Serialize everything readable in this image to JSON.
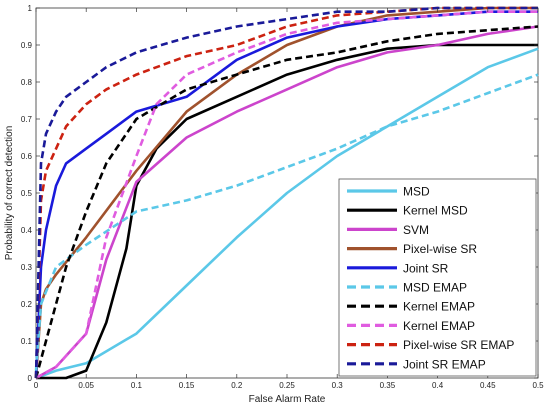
{
  "chart_data": {
    "type": "line",
    "title": "",
    "xlabel": "False Alarm Rate",
    "ylabel": "Probability of correct detection",
    "xlim": [
      0,
      0.5
    ],
    "ylim": [
      0,
      1
    ],
    "x_ticks": [
      "0",
      "0.05",
      "0.1",
      "0.15",
      "0.2",
      "0.25",
      "0.3",
      "0.35",
      "0.4",
      "0.45",
      "0.5"
    ],
    "y_ticks": [
      "0",
      "0.1",
      "0.2",
      "0.3",
      "0.4",
      "0.5",
      "0.6",
      "0.7",
      "0.8",
      "0.9",
      "1"
    ],
    "grid": false,
    "legend_position": "bottom-right",
    "series": [
      {
        "name": "MSD",
        "color": "#5bc8e8",
        "dash": "solid",
        "x": [
          0,
          0.02,
          0.05,
          0.1,
          0.15,
          0.2,
          0.25,
          0.3,
          0.35,
          0.4,
          0.45,
          0.5
        ],
        "y": [
          0,
          0.02,
          0.04,
          0.12,
          0.25,
          0.38,
          0.5,
          0.6,
          0.68,
          0.76,
          0.84,
          0.89
        ]
      },
      {
        "name": "Kernel MSD",
        "color": "#000000",
        "dash": "solid",
        "x": [
          0,
          0.03,
          0.05,
          0.07,
          0.09,
          0.1,
          0.12,
          0.15,
          0.2,
          0.25,
          0.3,
          0.35,
          0.4,
          0.45,
          0.5
        ],
        "y": [
          0,
          0,
          0.02,
          0.15,
          0.35,
          0.52,
          0.62,
          0.7,
          0.76,
          0.82,
          0.86,
          0.89,
          0.9,
          0.9,
          0.9
        ]
      },
      {
        "name": "SVM",
        "color": "#cc44cc",
        "dash": "solid",
        "x": [
          0,
          0.02,
          0.05,
          0.07,
          0.1,
          0.15,
          0.2,
          0.25,
          0.3,
          0.35,
          0.4,
          0.45,
          0.5
        ],
        "y": [
          0,
          0.03,
          0.12,
          0.32,
          0.53,
          0.65,
          0.72,
          0.78,
          0.84,
          0.88,
          0.9,
          0.93,
          0.95
        ]
      },
      {
        "name": "Pixel-wise SR",
        "color": "#a0522d",
        "dash": "solid",
        "x": [
          0,
          0.005,
          0.01,
          0.02,
          0.05,
          0.1,
          0.15,
          0.2,
          0.25,
          0.3,
          0.35,
          0.4,
          0.45,
          0.5
        ],
        "y": [
          0,
          0.2,
          0.24,
          0.28,
          0.38,
          0.56,
          0.72,
          0.82,
          0.9,
          0.95,
          0.98,
          0.99,
          1,
          1
        ]
      },
      {
        "name": "Joint SR",
        "color": "#1a1adb",
        "dash": "solid",
        "x": [
          0,
          0.005,
          0.01,
          0.02,
          0.03,
          0.05,
          0.07,
          0.1,
          0.15,
          0.2,
          0.25,
          0.3,
          0.35,
          0.4,
          0.45,
          0.5
        ],
        "y": [
          0,
          0.3,
          0.4,
          0.52,
          0.58,
          0.62,
          0.66,
          0.72,
          0.76,
          0.86,
          0.92,
          0.95,
          0.97,
          0.98,
          0.99,
          0.99
        ]
      },
      {
        "name": "MSD EMAP",
        "color": "#5bc8e8",
        "dash": "dashed",
        "x": [
          0,
          0.005,
          0.02,
          0.05,
          0.1,
          0.15,
          0.2,
          0.25,
          0.3,
          0.35,
          0.4,
          0.45,
          0.5
        ],
        "y": [
          0.02,
          0.2,
          0.3,
          0.36,
          0.45,
          0.48,
          0.52,
          0.57,
          0.62,
          0.68,
          0.72,
          0.77,
          0.82
        ]
      },
      {
        "name": "Kernel EMAP",
        "color": "#000000",
        "dash": "dashed",
        "x": [
          0,
          0.01,
          0.03,
          0.05,
          0.07,
          0.1,
          0.15,
          0.2,
          0.25,
          0.3,
          0.35,
          0.4,
          0.45,
          0.5
        ],
        "y": [
          0,
          0.1,
          0.3,
          0.45,
          0.58,
          0.7,
          0.78,
          0.82,
          0.86,
          0.88,
          0.91,
          0.93,
          0.94,
          0.95
        ]
      },
      {
        "name": "Kernel EMAP",
        "color": "#e05ce0",
        "dash": "dashed",
        "x": [
          0,
          0.02,
          0.05,
          0.07,
          0.1,
          0.12,
          0.15,
          0.2,
          0.25,
          0.3,
          0.35,
          0.4,
          0.45,
          0.5
        ],
        "y": [
          0,
          0.03,
          0.12,
          0.38,
          0.6,
          0.74,
          0.82,
          0.88,
          0.93,
          0.96,
          0.97,
          0.98,
          0.99,
          0.99
        ]
      },
      {
        "name": "Pixel-wise SR EMAP",
        "color": "#cc2211",
        "dash": "dashed",
        "x": [
          0,
          0.005,
          0.01,
          0.02,
          0.03,
          0.05,
          0.07,
          0.1,
          0.15,
          0.2,
          0.25,
          0.3,
          0.35,
          0.4,
          0.45,
          0.5
        ],
        "y": [
          0,
          0.48,
          0.56,
          0.62,
          0.68,
          0.74,
          0.78,
          0.82,
          0.87,
          0.9,
          0.95,
          0.98,
          0.99,
          1,
          1,
          1
        ]
      },
      {
        "name": "Joint SR EMAP",
        "color": "#1a1a99",
        "dash": "dashed",
        "x": [
          0,
          0.005,
          0.01,
          0.02,
          0.03,
          0.05,
          0.07,
          0.1,
          0.15,
          0.2,
          0.25,
          0.3,
          0.35,
          0.4,
          0.45,
          0.5
        ],
        "y": [
          0,
          0.58,
          0.66,
          0.72,
          0.76,
          0.8,
          0.84,
          0.88,
          0.92,
          0.95,
          0.97,
          0.99,
          0.99,
          1,
          1,
          1
        ]
      }
    ],
    "legend": [
      {
        "label": "MSD",
        "color": "#5bc8e8",
        "dash": "solid"
      },
      {
        "label": "Kernel MSD",
        "color": "#000000",
        "dash": "solid"
      },
      {
        "label": "SVM",
        "color": "#cc44cc",
        "dash": "solid"
      },
      {
        "label": "Pixel-wise SR",
        "color": "#a0522d",
        "dash": "solid"
      },
      {
        "label": "Joint SR",
        "color": "#1a1adb",
        "dash": "solid"
      },
      {
        "label": "MSD EMAP",
        "color": "#5bc8e8",
        "dash": "dashed"
      },
      {
        "label": "Kernel EMAP",
        "color": "#000000",
        "dash": "dashed"
      },
      {
        "label": "Kernel EMAP",
        "color": "#e05ce0",
        "dash": "dashed"
      },
      {
        "label": "Pixel-wise SR EMAP",
        "color": "#cc2211",
        "dash": "dashed"
      },
      {
        "label": "Joint SR EMAP",
        "color": "#1a1a99",
        "dash": "dashed"
      }
    ]
  }
}
